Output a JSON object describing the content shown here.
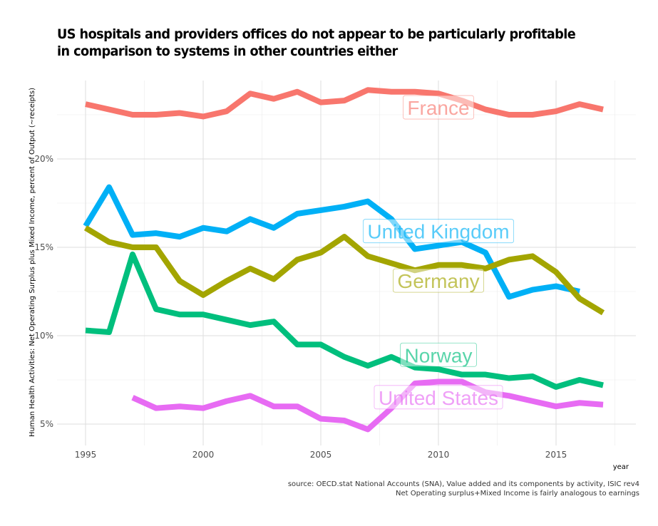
{
  "chart_data": {
    "type": "line",
    "title": "US hospitals and providers offices do not appear to be particularly profitable",
    "title_line2": "in comparison to systems in other countries either",
    "xlabel": "year",
    "ylabel": "Human Health Activities: Net Operating Surplus plus Mixed Income, percent of Output (~receipts)",
    "caption_line1": "source: OECD.stat National Accounts (SNA), Value added and its components by activity, ISIC rev4",
    "caption_line2": "Net Operating surplus+Mixed Income is fairly analogous to earnings ",
    "xlim": [
      1994.3,
      2017.7
    ],
    "ylim": [
      3.9,
      24.8
    ],
    "x_ticks": [
      1995,
      2000,
      2005,
      2010,
      2015
    ],
    "x_tick_labels": [
      "1995",
      "2000",
      "2005",
      "2010",
      "2015"
    ],
    "y_ticks": [
      5,
      10,
      15,
      20
    ],
    "y_tick_labels": [
      "5%",
      "10%",
      "15%",
      "20%"
    ],
    "grid": true,
    "legend": "direct-labels",
    "series": [
      {
        "name": "France",
        "color": "#F8766D",
        "label_at": [
          2010,
          22.9
        ],
        "x": [
          1995,
          1996,
          1997,
          1998,
          1999,
          2000,
          2001,
          2002,
          2003,
          2004,
          2005,
          2006,
          2007,
          2008,
          2009,
          2010,
          2011,
          2012,
          2013,
          2014,
          2015,
          2016,
          2017
        ],
        "values": [
          23.1,
          22.8,
          22.5,
          22.5,
          22.6,
          22.4,
          22.7,
          23.7,
          23.4,
          23.8,
          23.2,
          23.3,
          23.9,
          23.8,
          23.8,
          23.7,
          23.3,
          22.8,
          22.5,
          22.5,
          22.7,
          23.1,
          22.8
        ]
      },
      {
        "name": "United Kingdom",
        "color": "#00B0F6",
        "label_at": [
          2010,
          15.9
        ],
        "x": [
          1995,
          1996,
          1997,
          1998,
          1999,
          2000,
          2001,
          2002,
          2003,
          2004,
          2005,
          2006,
          2007,
          2008,
          2009,
          2010,
          2011,
          2012,
          2013,
          2014,
          2015,
          2016
        ],
        "values": [
          16.2,
          18.4,
          15.7,
          15.8,
          15.6,
          16.1,
          15.9,
          16.6,
          16.1,
          16.9,
          17.1,
          17.3,
          17.6,
          16.6,
          14.9,
          15.1,
          15.3,
          14.7,
          12.2,
          12.6,
          12.8,
          12.5
        ]
      },
      {
        "name": "Germany",
        "color": "#A3A500",
        "label_at": [
          2010,
          13.1
        ],
        "x": [
          1995,
          1996,
          1997,
          1998,
          1999,
          2000,
          2001,
          2002,
          2003,
          2004,
          2005,
          2006,
          2007,
          2008,
          2009,
          2010,
          2011,
          2012,
          2013,
          2014,
          2015,
          2016,
          2017
        ],
        "values": [
          16.1,
          15.3,
          15.0,
          15.0,
          13.1,
          12.3,
          13.1,
          13.8,
          13.2,
          14.3,
          14.7,
          15.6,
          14.5,
          14.1,
          13.7,
          14.0,
          14.0,
          13.8,
          14.3,
          14.5,
          13.6,
          12.1,
          11.3
        ]
      },
      {
        "name": "Norway",
        "color": "#00BF7D",
        "label_at": [
          2010,
          8.9
        ],
        "x": [
          1995,
          1996,
          1997,
          1998,
          1999,
          2000,
          2001,
          2002,
          2003,
          2004,
          2005,
          2006,
          2007,
          2008,
          2009,
          2010,
          2011,
          2012,
          2013,
          2014,
          2015,
          2016,
          2017
        ],
        "values": [
          10.3,
          10.2,
          14.6,
          11.5,
          11.2,
          11.2,
          10.9,
          10.6,
          10.8,
          9.5,
          9.5,
          8.8,
          8.3,
          8.8,
          8.2,
          8.1,
          7.8,
          7.8,
          7.6,
          7.7,
          7.1,
          7.5,
          7.2
        ]
      },
      {
        "name": "United States",
        "color": "#E76BF3",
        "label_at": [
          2010,
          6.5
        ],
        "x": [
          1997,
          1998,
          1999,
          2000,
          2001,
          2002,
          2003,
          2004,
          2005,
          2006,
          2007,
          2008,
          2009,
          2010,
          2011,
          2012,
          2013,
          2014,
          2015,
          2016,
          2017
        ],
        "values": [
          6.5,
          5.9,
          6.0,
          5.9,
          6.3,
          6.6,
          6.0,
          6.0,
          5.3,
          5.2,
          4.7,
          5.9,
          7.3,
          7.4,
          7.4,
          6.8,
          6.6,
          6.3,
          6.0,
          6.2,
          6.1
        ]
      }
    ]
  }
}
